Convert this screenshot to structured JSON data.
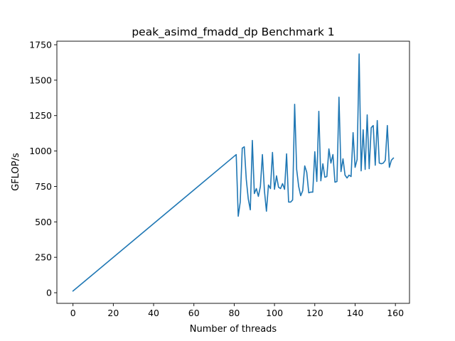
{
  "chart_data": {
    "type": "line",
    "title": "peak_asimd_fmadd_dp Benchmark 1",
    "xlabel": "Number of threads",
    "ylabel": "GFLOP/s",
    "xlim": [
      -8,
      167
    ],
    "ylim": [
      -75,
      1775
    ],
    "xticks": [
      0,
      20,
      40,
      60,
      80,
      100,
      120,
      140,
      160
    ],
    "yticks": [
      0,
      250,
      500,
      750,
      1000,
      1250,
      1500,
      1750
    ],
    "grid": false,
    "legend": "none",
    "series": [
      {
        "color": "#1f77b4",
        "points": [
          [
            0,
            12
          ],
          [
            81,
            975
          ],
          [
            82,
            540
          ],
          [
            83,
            640
          ],
          [
            84,
            1020
          ],
          [
            85,
            1030
          ],
          [
            86,
            800
          ],
          [
            87,
            660
          ],
          [
            88,
            585
          ],
          [
            89,
            1075
          ],
          [
            90,
            700
          ],
          [
            91,
            735
          ],
          [
            92,
            680
          ],
          [
            93,
            750
          ],
          [
            94,
            975
          ],
          [
            95,
            720
          ],
          [
            96,
            575
          ],
          [
            97,
            760
          ],
          [
            98,
            735
          ],
          [
            99,
            990
          ],
          [
            100,
            730
          ],
          [
            101,
            825
          ],
          [
            102,
            745
          ],
          [
            103,
            735
          ],
          [
            104,
            770
          ],
          [
            105,
            730
          ],
          [
            106,
            980
          ],
          [
            107,
            640
          ],
          [
            108,
            640
          ],
          [
            109,
            655
          ],
          [
            110,
            1330
          ],
          [
            111,
            870
          ],
          [
            112,
            750
          ],
          [
            113,
            685
          ],
          [
            114,
            720
          ],
          [
            115,
            895
          ],
          [
            116,
            850
          ],
          [
            117,
            705
          ],
          [
            118,
            710
          ],
          [
            119,
            710
          ],
          [
            120,
            995
          ],
          [
            121,
            785
          ],
          [
            122,
            1280
          ],
          [
            123,
            790
          ],
          [
            124,
            910
          ],
          [
            125,
            815
          ],
          [
            126,
            820
          ],
          [
            127,
            1015
          ],
          [
            128,
            915
          ],
          [
            129,
            975
          ],
          [
            130,
            780
          ],
          [
            131,
            785
          ],
          [
            132,
            1380
          ],
          [
            133,
            855
          ],
          [
            134,
            945
          ],
          [
            135,
            830
          ],
          [
            136,
            810
          ],
          [
            137,
            830
          ],
          [
            138,
            820
          ],
          [
            139,
            1130
          ],
          [
            140,
            885
          ],
          [
            141,
            940
          ],
          [
            142,
            1685
          ],
          [
            143,
            860
          ],
          [
            144,
            1150
          ],
          [
            145,
            870
          ],
          [
            146,
            1255
          ],
          [
            147,
            875
          ],
          [
            148,
            1165
          ],
          [
            149,
            1180
          ],
          [
            150,
            900
          ],
          [
            151,
            1215
          ],
          [
            152,
            915
          ],
          [
            153,
            910
          ],
          [
            154,
            915
          ],
          [
            155,
            935
          ],
          [
            156,
            1180
          ],
          [
            157,
            885
          ],
          [
            158,
            935
          ],
          [
            159,
            950
          ]
        ]
      }
    ]
  }
}
